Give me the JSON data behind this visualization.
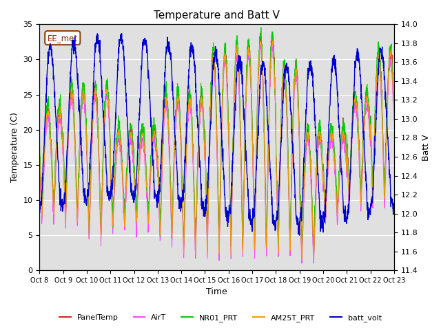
{
  "title": "Temperature and Batt V",
  "xlabel": "Time",
  "ylabel_left": "Temperature (C)",
  "ylabel_right": "Batt V",
  "annotation": "EE_met",
  "ylim_left": [
    0,
    35
  ],
  "ylim_right": [
    11.4,
    14.0
  ],
  "background_color": "#ffffff",
  "plot_bg_color": "#e0e0e0",
  "x_ticks": [
    "Oct 8",
    "Oct 9",
    "Oct 10",
    "Oct 11",
    "Oct 12",
    "Oct 13",
    "Oct 14",
    "Oct 15",
    "Oct 16",
    "Oct 17",
    "Oct 18",
    "Oct 19",
    "Oct 20",
    "Oct 21",
    "Oct 22",
    "Oct 23"
  ],
  "series_colors": {
    "PanelTemp": "#dd2222",
    "AirT": "#ff44ff",
    "NR01_PRT": "#00cc00",
    "AM25T_PRT": "#ff9900",
    "batt_volt": "#0000cc"
  },
  "n_days": 15,
  "pts_per_day": 144,
  "grid_color": "#ffffff",
  "title_fontsize": 11,
  "label_fontsize": 9,
  "tick_fontsize": 8,
  "batt_ylim": [
    11.4,
    14.0
  ],
  "temp_ylim": [
    0,
    35
  ],
  "left_yticks": [
    0,
    5,
    10,
    15,
    20,
    25,
    30,
    35
  ],
  "right_yticks": [
    11.4,
    11.6,
    11.8,
    12.0,
    12.2,
    12.4,
    12.6,
    12.8,
    13.0,
    13.2,
    13.4,
    13.6,
    13.8,
    14.0
  ]
}
